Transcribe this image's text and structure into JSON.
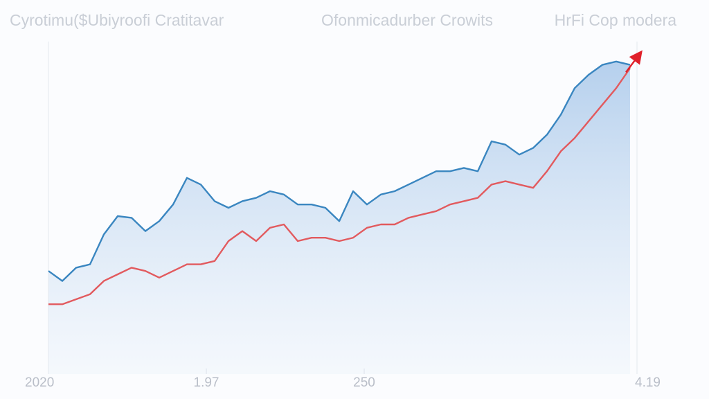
{
  "chart_data": {
    "type": "line",
    "headers": [
      "Cyrotimu($Ubiyroofi Cratitavar",
      "Ofonmicadurber Crowits",
      "HrFi Cop modera"
    ],
    "x": [
      0,
      1,
      2,
      3,
      4,
      5,
      6,
      7,
      8,
      9,
      10,
      11,
      12,
      13,
      14,
      15,
      16,
      17,
      18,
      19,
      20,
      21,
      22,
      23,
      24,
      25,
      26,
      27,
      28,
      29,
      30,
      31,
      32,
      33,
      34,
      35,
      36,
      37,
      38,
      39,
      40,
      41,
      42
    ],
    "xlim": [
      0,
      42.5
    ],
    "xticks": [
      {
        "value": 0,
        "label": "2020"
      },
      {
        "value": 11.4,
        "label": "1.97"
      },
      {
        "value": 22.8,
        "label": "250"
      },
      {
        "value": 42.5,
        "label": "4.19"
      }
    ],
    "ylim": [
      0,
      100
    ],
    "series": [
      {
        "color": "#3a86c0",
        "area": true,
        "values": [
          31,
          28,
          32,
          33,
          42,
          47.5,
          47,
          43,
          46,
          51,
          59,
          57,
          52,
          50,
          52,
          53,
          55,
          54,
          51,
          51,
          50,
          46,
          55,
          51,
          54,
          55,
          57,
          59,
          61,
          61,
          62,
          61,
          70,
          69,
          66,
          68,
          72,
          78,
          86,
          90,
          93,
          94,
          93
        ]
      },
      {
        "color": "#e25a5e",
        "arrow": true,
        "values": [
          21,
          21,
          22.5,
          24,
          28,
          30,
          32,
          31,
          29,
          31,
          33,
          33,
          34,
          40,
          43,
          40,
          44,
          45,
          40,
          41,
          41,
          40,
          41,
          44,
          45,
          45,
          47,
          48,
          49,
          51,
          52,
          53,
          57,
          58,
          57,
          56,
          61,
          67,
          71,
          76,
          81,
          86,
          92
        ]
      }
    ]
  }
}
